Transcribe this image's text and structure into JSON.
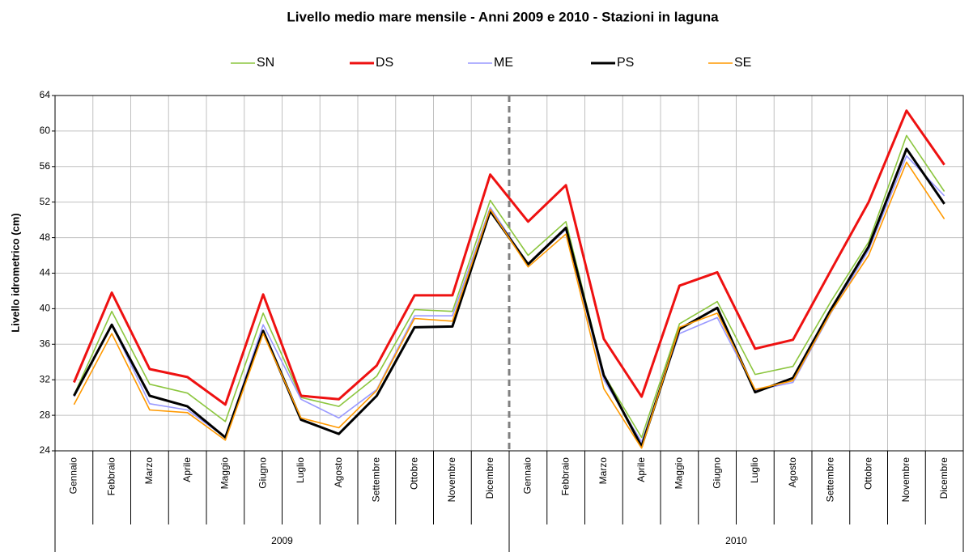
{
  "chart_data": {
    "type": "line",
    "title": "Livello medio mare mensile - Anni 2009 e 2010 - Stazioni in laguna",
    "ylabel": "Livello idrometrico (cm)",
    "categories": [
      "Gennaio",
      "Febbraio",
      "Marzo",
      "Aprile",
      "Maggio",
      "Giugno",
      "Luglio",
      "Agosto",
      "Settembre",
      "Ottobre",
      "Novembre",
      "Dicembre",
      "Gennaio",
      "Febbraio",
      "Marzo",
      "Aprile",
      "Maggio",
      "Giugno",
      "Luglio",
      "Agosto",
      "Settembre",
      "Ottobre",
      "Novembre",
      "Dicembre"
    ],
    "x_groups": [
      "2009",
      "2010"
    ],
    "ylim": [
      24,
      64
    ],
    "yticks": [
      24,
      28,
      32,
      36,
      40,
      44,
      48,
      52,
      56,
      60,
      64
    ],
    "grid": true,
    "legend": "top",
    "series": [
      {
        "name": "SN",
        "color": "#8cc63f",
        "values": [
          30.3,
          39.7,
          31.5,
          30.5,
          27.3,
          39.5,
          30.0,
          29.0,
          32.4,
          39.9,
          39.7,
          52.2,
          46.0,
          49.8,
          32.6,
          25.5,
          38.3,
          40.8,
          32.6,
          33.5,
          40.8,
          47.5,
          59.5,
          53.2
        ]
      },
      {
        "name": "DS",
        "color": "#ee1111",
        "values": [
          31.7,
          41.8,
          33.2,
          32.3,
          29.2,
          41.6,
          30.2,
          29.8,
          33.6,
          41.5,
          41.5,
          55.1,
          49.8,
          53.9,
          36.6,
          30.1,
          42.6,
          44.1,
          35.5,
          36.5,
          44.3,
          52.0,
          62.3,
          56.2
        ]
      },
      {
        "name": "ME",
        "color": "#9999ff",
        "values": [
          30.1,
          38.2,
          29.3,
          28.6,
          25.5,
          38.2,
          29.8,
          27.7,
          30.9,
          39.2,
          39.2,
          51.4,
          45.0,
          48.9,
          32.0,
          25.0,
          37.2,
          39.0,
          30.8,
          31.7,
          39.5,
          46.6,
          57.2,
          52.7
        ]
      },
      {
        "name": "PS",
        "color": "#000000",
        "values": [
          30.2,
          38.2,
          30.2,
          29.0,
          25.5,
          37.5,
          27.5,
          25.9,
          30.2,
          37.9,
          38.0,
          51.0,
          45.0,
          49.1,
          32.5,
          24.5,
          37.7,
          40.1,
          30.6,
          32.2,
          39.9,
          47.0,
          58.0,
          51.8
        ]
      },
      {
        "name": "SE",
        "color": "#ff9900",
        "values": [
          29.2,
          37.2,
          28.6,
          28.3,
          25.2,
          37.2,
          27.7,
          26.6,
          30.8,
          38.9,
          38.6,
          51.2,
          44.7,
          48.4,
          31.0,
          24.3,
          37.9,
          39.5,
          30.9,
          31.9,
          39.6,
          46.0,
          56.5,
          50.1
        ]
      }
    ]
  }
}
